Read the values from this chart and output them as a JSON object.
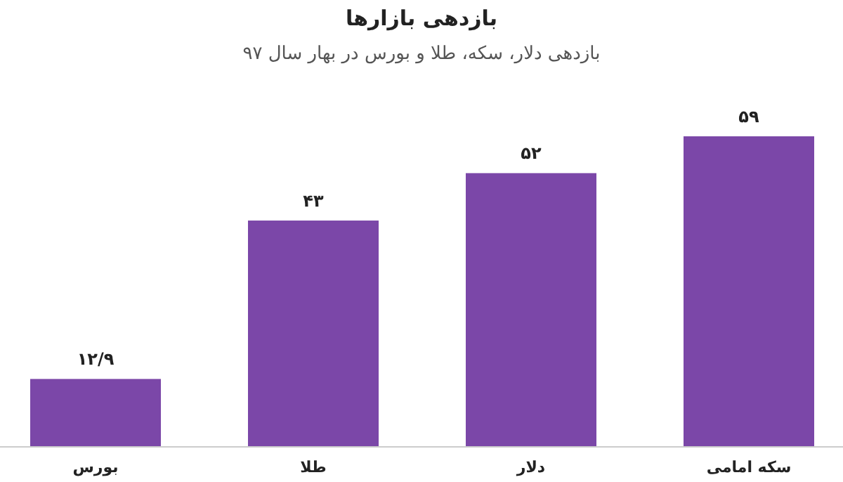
{
  "chart_data": {
    "type": "bar",
    "title": "بازدهی بازارها",
    "subtitle": "بازدهی دلار، سکه، طلا و بورس در بهار سال ۹۷",
    "categories": [
      "بورس",
      "طلا",
      "دلار",
      "سکه امامی"
    ],
    "values": [
      12.9,
      43,
      52,
      59
    ],
    "value_labels": [
      "۱۲/۹",
      "۴۳",
      "۵۲",
      "۵۹"
    ],
    "color": "#7b47a8"
  }
}
